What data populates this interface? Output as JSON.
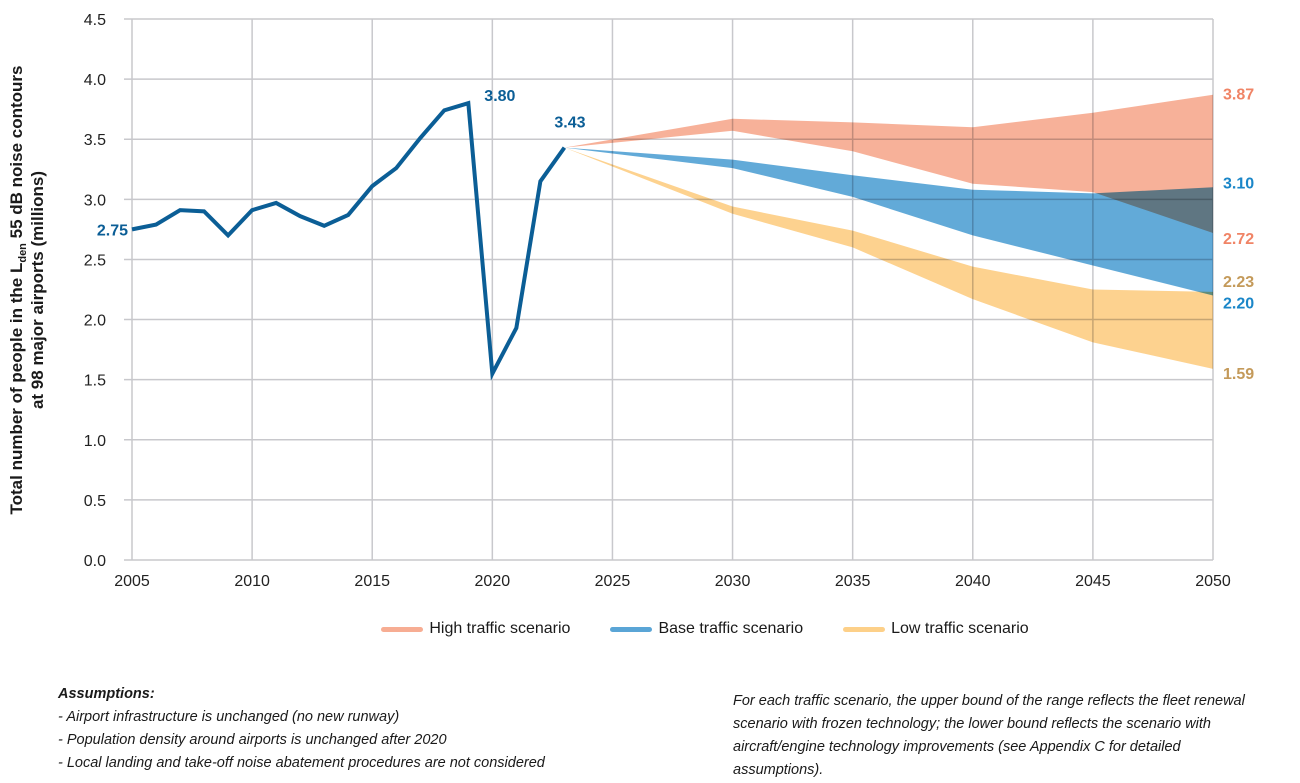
{
  "chart_data": {
    "type": "line",
    "title": "",
    "xlabel": "",
    "ylabel_parts": {
      "line1_prefix": "Total number of people in the L",
      "line1_sub": "den",
      "line1_suffix": " 55 dB noise contours",
      "line2": "at 98 major airports (millions)"
    },
    "xlim": [
      2005,
      2050
    ],
    "ylim": [
      0.0,
      4.5
    ],
    "grid": true,
    "x_ticks": [
      2005,
      2010,
      2015,
      2020,
      2025,
      2030,
      2035,
      2040,
      2045,
      2050
    ],
    "y_ticks": [
      "0.0",
      "0.5",
      "1.0",
      "1.5",
      "2.0",
      "2.5",
      "3.0",
      "3.5",
      "4.0",
      "4.5"
    ],
    "historical": {
      "name": "Historical",
      "color": "#0b5e96",
      "x": [
        2005,
        2006,
        2007,
        2008,
        2009,
        2010,
        2011,
        2012,
        2013,
        2014,
        2015,
        2016,
        2017,
        2018,
        2019,
        2020,
        2021,
        2022,
        2023
      ],
      "y": [
        2.75,
        2.79,
        2.91,
        2.9,
        2.7,
        2.91,
        2.97,
        2.86,
        2.78,
        2.87,
        3.11,
        3.26,
        3.51,
        3.74,
        3.8,
        1.55,
        1.93,
        3.15,
        3.43
      ],
      "annotations": [
        {
          "x": 2005,
          "y": 2.75,
          "text": "2.75"
        },
        {
          "x": 2019,
          "y": 3.8,
          "text": "3.80"
        },
        {
          "x": 2023,
          "y": 3.43,
          "text": "3.43"
        }
      ]
    },
    "series": [
      {
        "name": "High traffic scenario",
        "color": "#f7ad93",
        "label_color": "#f08466",
        "x": [
          2023,
          2030,
          2035,
          2040,
          2045,
          2050
        ],
        "upper": [
          3.43,
          3.67,
          3.64,
          3.6,
          3.72,
          3.87
        ],
        "lower": [
          3.43,
          3.57,
          3.4,
          3.13,
          3.06,
          2.72
        ],
        "end_labels": {
          "upper": "3.87",
          "lower": "2.72"
        }
      },
      {
        "name": "Base traffic scenario",
        "color": "#5aa5d6",
        "label_color": "#1a86c8",
        "x": [
          2023,
          2030,
          2035,
          2040,
          2045,
          2050
        ],
        "upper": [
          3.43,
          3.33,
          3.2,
          3.08,
          3.05,
          3.1
        ],
        "lower": [
          3.43,
          3.26,
          3.02,
          2.7,
          2.45,
          2.2
        ],
        "end_labels": {
          "upper": "3.10",
          "lower": "2.20"
        }
      },
      {
        "name": "Low traffic scenario",
        "color": "#fdd089",
        "label_color": "#c49a5a",
        "x": [
          2023,
          2030,
          2035,
          2040,
          2045,
          2050
        ],
        "upper": [
          3.43,
          2.94,
          2.74,
          2.44,
          2.25,
          2.23
        ],
        "lower": [
          3.43,
          2.88,
          2.6,
          2.17,
          1.81,
          1.59
        ],
        "end_labels": {
          "upper": "2.23",
          "lower": "1.59"
        }
      }
    ],
    "legend_position": "bottom-center"
  },
  "legend": [
    {
      "label": "High traffic scenario",
      "color": "#f7ad93"
    },
    {
      "label": "Base traffic scenario",
      "color": "#5aa5d6"
    },
    {
      "label": "Low traffic scenario",
      "color": "#fdd089"
    }
  ],
  "notes": {
    "assumptions_title": "Assumptions:",
    "assumptions": [
      "- Airport infrastructure is unchanged (no new runway)",
      "- Population density around airports is unchanged after 2020",
      "- Local landing and take-off noise abatement procedures are not considered"
    ],
    "scenario_note": "For each traffic scenario, the upper bound of the range reflects the fleet renewal scenario with frozen technology; the lower bound reflects the scenario with aircraft/engine technology improvements (see Appendix C for detailed assumptions)."
  }
}
